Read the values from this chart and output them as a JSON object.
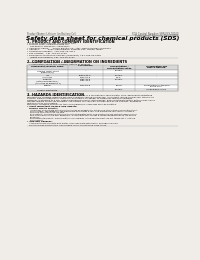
{
  "bg_color": "#f0ede8",
  "header_left": "Product Name: Lithium Ion Battery Cell",
  "header_right_line1": "SDS Control Number: SBR-049-00010",
  "header_right_line2": "Established / Revision: Dec.7.2016",
  "title": "Safety data sheet for chemical products (SDS)",
  "section1_title": "1. PRODUCT AND COMPANY IDENTIFICATION",
  "section1_lines": [
    "• Product name: Lithium Ion Battery Cell",
    "• Product code: CylindricalType cell",
    "    SR18650U, SR18650L, SR18650A",
    "• Company name:     Sanyo Electric Co., Ltd., Mobile Energy Company",
    "• Address:           2001, Kaminoiden, Sumoto-City, Hyogo, Japan",
    "• Telephone number:  +81-799-26-4111",
    "• Fax number:  +81-799-26-4129",
    "• Emergency telephone number (Weekday) +81-799-26-3962",
    "    (Night and holiday) +81-799-26-4101"
  ],
  "section2_title": "2. COMPOSITION / INFORMATION ON INGREDIENTS",
  "section2_sub": "• Substance or preparation: Preparation",
  "section2_sub2": "  • Information about the chemical nature of product",
  "table_headers_row1": [
    "Component/chemical name",
    "CAS number",
    "Concentration /\nConcentration range",
    "Classification and\nhazard labeling"
  ],
  "table_subheader": "Several Name",
  "table_rows": [
    [
      "Lithium cobalt oxide\n(LiMnCoO(x))",
      "-",
      "30-60%",
      ""
    ],
    [
      "Iron",
      "26389-89-9",
      "10-20%",
      "-"
    ],
    [
      "Aluminum",
      "7429-90-5",
      "2-5%",
      "-"
    ],
    [
      "Graphite\n(listed as graphite-1)\n(All listed as graphite-1)",
      "7782-42-5\n7782-44-2",
      "10-25%",
      ""
    ],
    [
      "Copper",
      "7440-50-8",
      "5-15%",
      "Sensitization of the skin\ngroup No.2"
    ],
    [
      "Organic electrolyte",
      "-",
      "10-20%",
      "Inflammable liquid"
    ]
  ],
  "col_positions": [
    3,
    55,
    100,
    142,
    197
  ],
  "section3_title": "3. HAZARDS IDENTIFICATION",
  "section3_lines": [
    "For the battery cell, chemical substances are stored in a hermetically sealed metal case, designed to withstand",
    "temperature changes, pressure-pressure conditions during normal use. As a result, during normal use, there is no",
    "physical danger of ignition or explosion and there’s no danger of hazardous materials leakage.",
    "However, if exposed to a fire, added mechanical shocks, decomposes, when electrolyte within battery may cause",
    "the gas release cannot be operated. The battery cell case will be breached at fire patterns, hazardous",
    "materials may be released.",
    "Moreover, if heated strongly by the surrounding fire, some gas may be emitted."
  ],
  "section3_important": "• Most important hazard and effects:",
  "section3_human": "Human health effects:",
  "section3_detail_lines": [
    "Inhalation: The release of the electrolyte has an anaesthetic action and stimulates in respiratory tract.",
    "Skin contact: The release of the electrolyte stimulates a skin. The electrolyte skin contact causes a",
    "sore and stimulation on the skin.",
    "Eye contact: The release of the electrolyte stimulates eyes. The electrolyte eye contact causes a sore",
    "and stimulation on the eye. Especially, a substance that causes a strong inflammation of the eyes is",
    "produced.",
    "Environmental effects: Since a battery cell remains in the environment, do not throw out it into the",
    "environment."
  ],
  "section3_specific": "• Specific hazards:",
  "section3_sp_lines": [
    "If the electrolyte contacts with water, it will generate detrimental hydrogen fluoride.",
    "Since the lead electrolyte is inflammable liquid, do not bring close to fire."
  ]
}
